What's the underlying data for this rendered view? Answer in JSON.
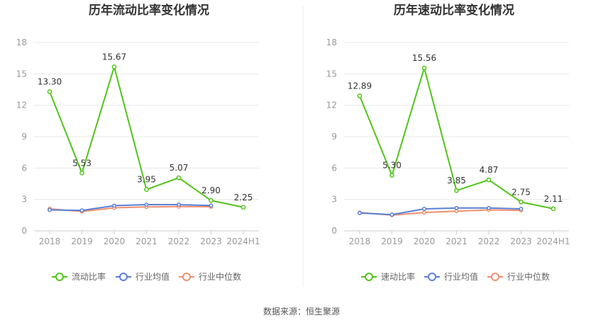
{
  "source": "数据来源：恒生聚源",
  "colors": {
    "main": "#52c41a",
    "avg": "#5b7fd6",
    "median": "#f0906e",
    "grid": "#e8e8e8",
    "axis": "#cccccc"
  },
  "chart_data": [
    {
      "type": "line",
      "title": "历年流动比率变化情况",
      "categories": [
        "2018",
        "2019",
        "2020",
        "2021",
        "2022",
        "2023",
        "2024H1"
      ],
      "yticks": [
        0,
        3,
        6,
        9,
        12,
        15,
        18
      ],
      "ylim": [
        0,
        18
      ],
      "legend_position": "bottom",
      "grid": true,
      "series": [
        {
          "name": "流动比率",
          "values": [
            13.3,
            5.53,
            15.67,
            3.95,
            5.07,
            2.9,
            2.25
          ],
          "labels": [
            "13.30",
            "5.53",
            "15.67",
            "3.95",
            "5.07",
            "2.90",
            "2.25"
          ]
        },
        {
          "name": "行业均值",
          "values": [
            2.0,
            1.95,
            2.4,
            2.5,
            2.5,
            2.42,
            null
          ]
        },
        {
          "name": "行业中位数",
          "values": [
            2.1,
            1.85,
            2.2,
            2.28,
            2.32,
            2.3,
            null
          ]
        }
      ]
    },
    {
      "type": "line",
      "title": "历年速动比率变化情况",
      "categories": [
        "2018",
        "2019",
        "2020",
        "2021",
        "2022",
        "2023",
        "2024H1"
      ],
      "yticks": [
        0,
        3,
        6,
        9,
        12,
        15,
        18
      ],
      "ylim": [
        0,
        18
      ],
      "legend_position": "bottom",
      "grid": true,
      "series": [
        {
          "name": "速动比率",
          "values": [
            12.89,
            5.3,
            15.56,
            3.85,
            4.87,
            2.75,
            2.11
          ],
          "labels": [
            "12.89",
            "5.30",
            "15.56",
            "3.85",
            "4.87",
            "2.75",
            "2.11"
          ]
        },
        {
          "name": "行业均值",
          "values": [
            1.7,
            1.55,
            2.1,
            2.18,
            2.18,
            2.1,
            null
          ]
        },
        {
          "name": "行业中位数",
          "values": [
            1.75,
            1.5,
            1.75,
            1.88,
            2.0,
            1.95,
            null
          ]
        }
      ]
    }
  ]
}
